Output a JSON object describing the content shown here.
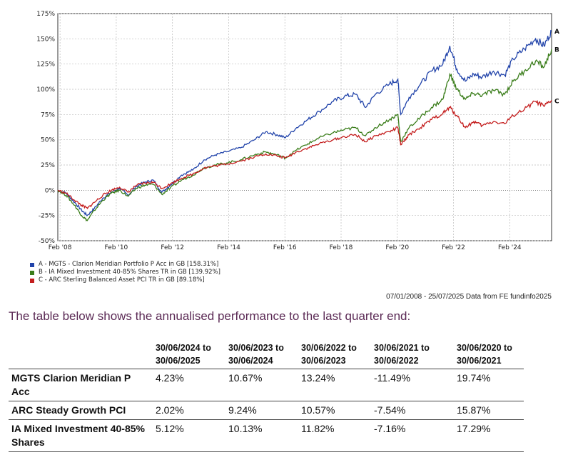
{
  "chart_data": {
    "type": "line",
    "ylim": [
      -50,
      175
    ],
    "y_ticks": [
      "175%",
      "150%",
      "125%",
      "100%",
      "75%",
      "50%",
      "25%",
      "0%",
      "-25%",
      "-50%"
    ],
    "y_tick_values": [
      175,
      150,
      125,
      100,
      75,
      50,
      25,
      0,
      -25,
      -50
    ],
    "x_ticks": [
      "Feb '08",
      "Feb '10",
      "Feb '12",
      "Feb '14",
      "Feb '16",
      "Feb '18",
      "Feb '20",
      "Feb '22",
      "Feb '24"
    ],
    "x_tick_values": [
      2008.08,
      2010.08,
      2012.08,
      2014.08,
      2016.08,
      2018.08,
      2020.08,
      2022.08,
      2024.08
    ],
    "xlim": [
      2008.0,
      2025.57
    ],
    "grid": true,
    "series": [
      {
        "name": "A - MGTS - Clarion Meridian Portfolio P Acc in GB [158.31%]",
        "end_label": "A",
        "color": "#2244aa",
        "points": [
          [
            2008.0,
            0
          ],
          [
            2008.3,
            -3
          ],
          [
            2008.6,
            -12
          ],
          [
            2008.85,
            -20
          ],
          [
            2009.05,
            -25
          ],
          [
            2009.3,
            -18
          ],
          [
            2009.6,
            -8
          ],
          [
            2009.9,
            -2
          ],
          [
            2010.2,
            2
          ],
          [
            2010.5,
            -5
          ],
          [
            2010.8,
            4
          ],
          [
            2011.1,
            8
          ],
          [
            2011.4,
            10
          ],
          [
            2011.7,
            -2
          ],
          [
            2012.0,
            5
          ],
          [
            2012.4,
            15
          ],
          [
            2012.8,
            20
          ],
          [
            2013.2,
            30
          ],
          [
            2013.6,
            35
          ],
          [
            2014.0,
            38
          ],
          [
            2014.5,
            42
          ],
          [
            2015.0,
            50
          ],
          [
            2015.4,
            58
          ],
          [
            2015.8,
            55
          ],
          [
            2016.1,
            52
          ],
          [
            2016.5,
            62
          ],
          [
            2016.9,
            70
          ],
          [
            2017.3,
            78
          ],
          [
            2017.8,
            88
          ],
          [
            2018.2,
            93
          ],
          [
            2018.6,
            95
          ],
          [
            2018.95,
            82
          ],
          [
            2019.3,
            95
          ],
          [
            2019.8,
            105
          ],
          [
            2020.1,
            110
          ],
          [
            2020.2,
            75
          ],
          [
            2020.5,
            92
          ],
          [
            2020.9,
            105
          ],
          [
            2021.3,
            118
          ],
          [
            2021.7,
            125
          ],
          [
            2021.95,
            143
          ],
          [
            2022.2,
            120
          ],
          [
            2022.5,
            108
          ],
          [
            2022.8,
            115
          ],
          [
            2023.1,
            112
          ],
          [
            2023.5,
            118
          ],
          [
            2023.9,
            114
          ],
          [
            2024.2,
            130
          ],
          [
            2024.6,
            140
          ],
          [
            2025.0,
            150
          ],
          [
            2025.3,
            143
          ],
          [
            2025.57,
            158
          ]
        ]
      },
      {
        "name": "B - IA Mixed Investment 40-85% Shares TR in GB [139.92%]",
        "end_label": "B",
        "color": "#3a7d1a",
        "points": [
          [
            2008.0,
            0
          ],
          [
            2008.3,
            -5
          ],
          [
            2008.6,
            -15
          ],
          [
            2008.85,
            -25
          ],
          [
            2009.05,
            -30
          ],
          [
            2009.3,
            -20
          ],
          [
            2009.6,
            -10
          ],
          [
            2009.9,
            -3
          ],
          [
            2010.2,
            0
          ],
          [
            2010.5,
            -6
          ],
          [
            2010.8,
            2
          ],
          [
            2011.1,
            5
          ],
          [
            2011.4,
            6
          ],
          [
            2011.7,
            -4
          ],
          [
            2012.0,
            2
          ],
          [
            2012.4,
            10
          ],
          [
            2012.8,
            15
          ],
          [
            2013.2,
            22
          ],
          [
            2013.6,
            25
          ],
          [
            2014.0,
            27
          ],
          [
            2014.5,
            30
          ],
          [
            2015.0,
            35
          ],
          [
            2015.4,
            38
          ],
          [
            2015.8,
            35
          ],
          [
            2016.1,
            32
          ],
          [
            2016.5,
            40
          ],
          [
            2016.9,
            46
          ],
          [
            2017.3,
            52
          ],
          [
            2017.8,
            57
          ],
          [
            2018.2,
            60
          ],
          [
            2018.6,
            62
          ],
          [
            2018.95,
            54
          ],
          [
            2019.3,
            62
          ],
          [
            2019.8,
            70
          ],
          [
            2020.1,
            75
          ],
          [
            2020.2,
            48
          ],
          [
            2020.5,
            62
          ],
          [
            2020.9,
            72
          ],
          [
            2021.3,
            82
          ],
          [
            2021.7,
            90
          ],
          [
            2021.95,
            115
          ],
          [
            2022.2,
            100
          ],
          [
            2022.5,
            90
          ],
          [
            2022.8,
            96
          ],
          [
            2023.1,
            94
          ],
          [
            2023.5,
            99
          ],
          [
            2023.9,
            95
          ],
          [
            2024.2,
            108
          ],
          [
            2024.6,
            118
          ],
          [
            2025.0,
            128
          ],
          [
            2025.3,
            122
          ],
          [
            2025.57,
            139.9
          ]
        ]
      },
      {
        "name": "C - ARC Sterling Balanced Asset PCI TR in GB [89.18%]",
        "end_label": "C",
        "color": "#c41e1e",
        "points": [
          [
            2008.0,
            0
          ],
          [
            2008.3,
            -3
          ],
          [
            2008.6,
            -10
          ],
          [
            2008.85,
            -15
          ],
          [
            2009.05,
            -18
          ],
          [
            2009.3,
            -12
          ],
          [
            2009.6,
            -5
          ],
          [
            2009.9,
            0
          ],
          [
            2010.2,
            3
          ],
          [
            2010.5,
            -2
          ],
          [
            2010.8,
            5
          ],
          [
            2011.1,
            7
          ],
          [
            2011.4,
            8
          ],
          [
            2011.7,
            2
          ],
          [
            2012.0,
            6
          ],
          [
            2012.4,
            12
          ],
          [
            2012.8,
            16
          ],
          [
            2013.2,
            22
          ],
          [
            2013.6,
            24
          ],
          [
            2014.0,
            26
          ],
          [
            2014.5,
            29
          ],
          [
            2015.0,
            33
          ],
          [
            2015.4,
            36
          ],
          [
            2015.8,
            34
          ],
          [
            2016.1,
            32
          ],
          [
            2016.5,
            38
          ],
          [
            2016.9,
            42
          ],
          [
            2017.3,
            46
          ],
          [
            2017.8,
            50
          ],
          [
            2018.2,
            53
          ],
          [
            2018.6,
            55
          ],
          [
            2018.95,
            48
          ],
          [
            2019.3,
            54
          ],
          [
            2019.8,
            58
          ],
          [
            2020.1,
            62
          ],
          [
            2020.2,
            45
          ],
          [
            2020.5,
            55
          ],
          [
            2020.9,
            62
          ],
          [
            2021.3,
            70
          ],
          [
            2021.7,
            76
          ],
          [
            2021.95,
            82
          ],
          [
            2022.2,
            74
          ],
          [
            2022.5,
            62
          ],
          [
            2022.8,
            68
          ],
          [
            2023.1,
            64
          ],
          [
            2023.5,
            68
          ],
          [
            2023.9,
            66
          ],
          [
            2024.2,
            74
          ],
          [
            2024.6,
            80
          ],
          [
            2025.0,
            88
          ],
          [
            2025.3,
            83
          ],
          [
            2025.57,
            89.2
          ]
        ]
      }
    ]
  },
  "legend_items": [
    {
      "label": "A - MGTS - Clarion Meridian Portfolio P Acc in GB [158.31%]",
      "color": "#2244aa"
    },
    {
      "label": "B - IA Mixed Investment 40-85% Shares TR in GB [139.92%]",
      "color": "#3a7d1a"
    },
    {
      "label": "C - ARC Sterling Balanced Asset PCI TR in GB [89.18%]",
      "color": "#c41e1e"
    }
  ],
  "source_note": "07/01/2008 - 25/07/2025 Data from FE fundinfo2025",
  "intro_text": "The table below shows the annualised performance to the last quarter end:",
  "table": {
    "headers": [
      "",
      "30/06/2024 to 30/06/2025",
      "30/06/2023 to 30/06/2024",
      "30/06/2022 to 30/06/2023",
      "30/06/2021 to 30/06/2022",
      "30/06/2020 to 30/06/2021"
    ],
    "rows": [
      {
        "name": "MGTS Clarion Meridian P Acc",
        "values": [
          "4.23%",
          "10.67%",
          "13.24%",
          "-11.49%",
          "19.74%"
        ]
      },
      {
        "name": "ARC Steady Growth PCI",
        "values": [
          "2.02%",
          "9.24%",
          "10.57%",
          "-7.54%",
          "15.87%"
        ]
      },
      {
        "name": "IA Mixed Investment 40-85% Shares",
        "values": [
          "5.12%",
          "10.13%",
          "11.82%",
          "-7.16%",
          "17.29%"
        ]
      }
    ]
  }
}
